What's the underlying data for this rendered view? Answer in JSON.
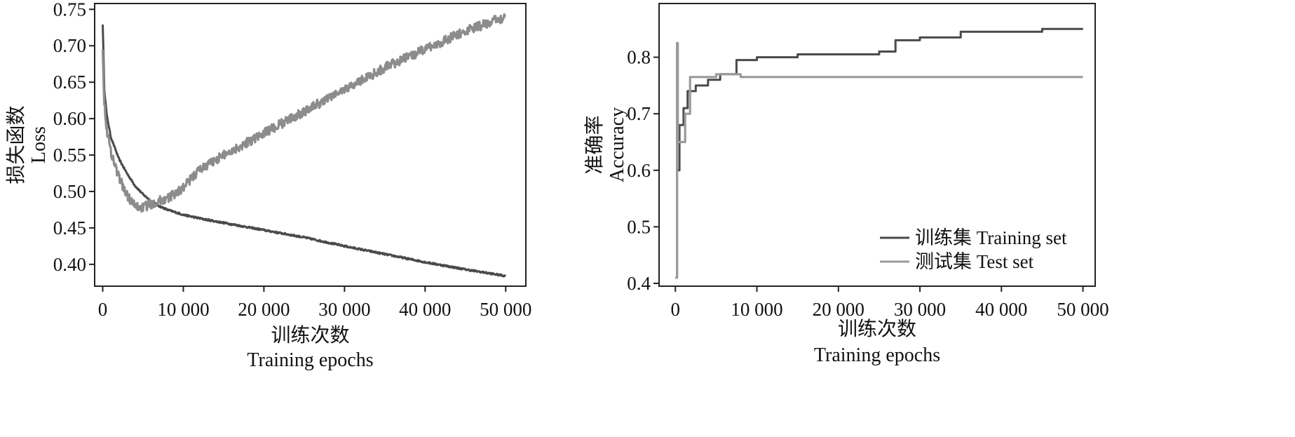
{
  "chart_data": [
    {
      "type": "line",
      "xlabel_cn": "训练次数",
      "xlabel": "Training epochs",
      "ylabel_cn": "损失函数",
      "ylabel": "Loss",
      "xlim": [
        -1000,
        52500
      ],
      "ylim": [
        0.37,
        0.758
      ],
      "xticks": [
        0,
        10000,
        20000,
        30000,
        40000,
        50000
      ],
      "xtick_labels": [
        "0",
        "10 000",
        "20 000",
        "30 000",
        "40 000",
        "50 000"
      ],
      "yticks": [
        0.4,
        0.45,
        0.5,
        0.55,
        0.6,
        0.65,
        0.7,
        0.75
      ],
      "ytick_labels": [
        "0.40",
        "0.45",
        "0.50",
        "0.55",
        "0.60",
        "0.65",
        "0.70",
        "0.75"
      ],
      "grid": false,
      "series": [
        {
          "color": "#4a4a4a",
          "x": [
            0,
            200,
            500,
            1000,
            2000,
            3000,
            4000,
            5000,
            6000,
            7000,
            8000,
            10000,
            12500,
            15000,
            20000,
            25000,
            30000,
            35000,
            40000,
            45000,
            50000
          ],
          "values": [
            0.73,
            0.64,
            0.605,
            0.575,
            0.545,
            0.525,
            0.508,
            0.496,
            0.487,
            0.48,
            0.475,
            0.468,
            0.462,
            0.457,
            0.447,
            0.437,
            0.425,
            0.414,
            0.403,
            0.393,
            0.384
          ]
        },
        {
          "color": "#8c8c8c",
          "x": [
            0,
            200,
            500,
            1000,
            2000,
            3000,
            4000,
            5000,
            6000,
            7000,
            8000,
            10000,
            12000,
            15000,
            20000,
            25000,
            30000,
            35000,
            40000,
            45000,
            50000
          ],
          "values": [
            0.7,
            0.62,
            0.585,
            0.555,
            0.52,
            0.495,
            0.48,
            0.478,
            0.483,
            0.487,
            0.49,
            0.505,
            0.53,
            0.55,
            0.58,
            0.61,
            0.64,
            0.67,
            0.695,
            0.72,
            0.74
          ]
        }
      ]
    },
    {
      "type": "line",
      "xlabel_cn": "训练次数",
      "xlabel": "Training epochs",
      "ylabel_cn": "准确率",
      "ylabel": "Accuracy",
      "xlim": [
        -2000,
        51500
      ],
      "ylim": [
        0.395,
        0.895
      ],
      "xticks": [
        0,
        10000,
        20000,
        30000,
        40000,
        50000
      ],
      "xtick_labels": [
        "0",
        "10 000",
        "20 000",
        "30 000",
        "40 000",
        "50 000"
      ],
      "yticks": [
        0.4,
        0.5,
        0.6,
        0.7,
        0.8
      ],
      "ytick_labels": [
        "0.4",
        "0.5",
        "0.6",
        "0.7",
        "0.8"
      ],
      "grid": false,
      "legend_position": "bottom-right",
      "series": [
        {
          "name": "训练集 Training set",
          "color": "#4a4a4a",
          "x": [
            0,
            200,
            500,
            1000,
            1500,
            2500,
            4000,
            5500,
            7500,
            10000,
            15000,
            20000,
            25000,
            27000,
            30000,
            35000,
            40000,
            45000,
            50000
          ],
          "values": [
            0.41,
            0.6,
            0.68,
            0.71,
            0.74,
            0.75,
            0.76,
            0.77,
            0.795,
            0.8,
            0.805,
            0.805,
            0.81,
            0.83,
            0.835,
            0.845,
            0.845,
            0.85,
            0.85
          ]
        },
        {
          "name": "测试集 Test set",
          "color": "#9a9a9a",
          "x": [
            0,
            200,
            300,
            600,
            1200,
            1800,
            3000,
            5000,
            7000,
            8000,
            20000,
            30000,
            40000,
            50000
          ],
          "values": [
            0.41,
            0.825,
            0.65,
            0.65,
            0.7,
            0.765,
            0.765,
            0.77,
            0.77,
            0.765,
            0.765,
            0.765,
            0.765,
            0.765
          ]
        }
      ]
    }
  ]
}
